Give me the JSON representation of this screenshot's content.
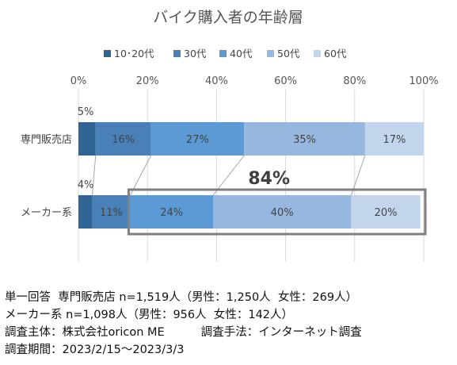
{
  "chart_data": {
    "type": "bar",
    "orientation": "horizontal",
    "stacked": true,
    "percent": true,
    "title": "バイク購入者の年齢層",
    "categories": [
      "専門販売店",
      "メーカー系"
    ],
    "series": [
      {
        "name": "10･20代",
        "color": "#2f6494",
        "values": [
          5,
          4
        ],
        "labels": [
          "5%",
          "4%"
        ]
      },
      {
        "name": "30代",
        "color": "#4a80b8",
        "values": [
          16,
          11
        ],
        "labels": [
          "16%",
          "11%"
        ]
      },
      {
        "name": "40代",
        "color": "#5b9ad5",
        "values": [
          27,
          24
        ],
        "labels": [
          "27%",
          "24%"
        ]
      },
      {
        "name": "50代",
        "color": "#97b8de",
        "values": [
          35,
          40
        ],
        "labels": [
          "35%",
          "40%"
        ]
      },
      {
        "name": "60代",
        "color": "#c2d5ed",
        "values": [
          17,
          20
        ],
        "labels": [
          "17%",
          "20%"
        ]
      }
    ],
    "xlim": [
      0,
      100
    ],
    "xticks": [
      "0%",
      "20%",
      "40%",
      "60%",
      "80%",
      "100%"
    ],
    "legend_position": "top",
    "annotation": {
      "text": "84%",
      "highlight_category": "メーカー系",
      "highlight_series": [
        "40代",
        "50代",
        "60代"
      ]
    }
  },
  "notes": [
    "単一回答  専門販売店 n=1,519人（男性：1,250人  女性：269人）",
    "メーカー系 n=1,098人（男性：956人  女性：142人）",
    "調査主体：株式会社oricon ME          調査手法：インターネット調査",
    "調査期間：2023/2/15～2023/3/3"
  ]
}
